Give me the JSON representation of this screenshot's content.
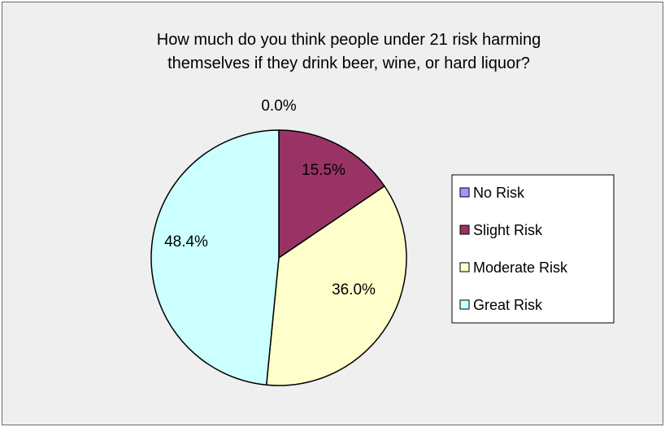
{
  "chart_data": {
    "type": "pie",
    "title": "How much do you think people under 21 risk harming themselves if they drink beer, wine, or hard liquor?",
    "title_lines": [
      "How much do you think people under 21 risk harming",
      "themselves if they drink beer, wine, or hard liquor?"
    ],
    "categories": [
      "No Risk",
      "Slight Risk",
      "Moderate Risk",
      "Great Risk"
    ],
    "values": [
      0.0,
      15.5,
      36.0,
      48.4
    ],
    "labels": [
      "0.0%",
      "15.5%",
      "36.0%",
      "48.4%"
    ],
    "colors": [
      "#9999ff",
      "#993366",
      "#ffffcc",
      "#ccffff"
    ],
    "legend_position": "right"
  }
}
